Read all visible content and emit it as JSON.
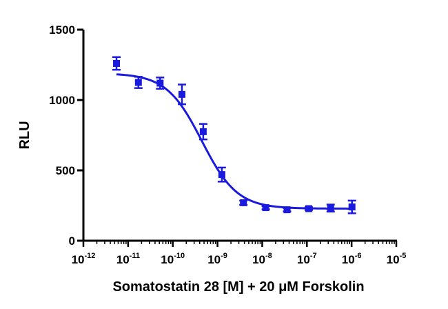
{
  "chart_data": {
    "type": "scatter",
    "title": "",
    "xlabel": "Somatostatin 28 [M] + 20 μM Forskolin",
    "ylabel": "RLU",
    "x_scale": "log",
    "xlim": [
      1e-12,
      1e-05
    ],
    "ylim": [
      0,
      1500
    ],
    "x_ticks": [
      {
        "base": "10",
        "exp": "-12"
      },
      {
        "base": "10",
        "exp": "-11"
      },
      {
        "base": "10",
        "exp": "-10"
      },
      {
        "base": "10",
        "exp": "-9"
      },
      {
        "base": "10",
        "exp": "-8"
      },
      {
        "base": "10",
        "exp": "-7"
      },
      {
        "base": "10",
        "exp": "-6"
      },
      {
        "base": "10",
        "exp": "-5"
      }
    ],
    "y_ticks": [
      "0",
      "500",
      "1000",
      "1500"
    ],
    "y_tick_values": [
      0,
      500,
      1000,
      1500
    ],
    "grid": false,
    "legend": "none",
    "color": "#1a1adf",
    "series": [
      {
        "points": [
          {
            "x": 5.5e-12,
            "y": 1260,
            "err": 45
          },
          {
            "x": 1.7e-11,
            "y": 1125,
            "err": 40
          },
          {
            "x": 5.2e-11,
            "y": 1120,
            "err": 40
          },
          {
            "x": 1.6e-10,
            "y": 1040,
            "err": 70
          },
          {
            "x": 4.8e-10,
            "y": 775,
            "err": 55
          },
          {
            "x": 1.25e-09,
            "y": 470,
            "err": 50
          },
          {
            "x": 3.8e-09,
            "y": 270,
            "err": 15
          },
          {
            "x": 1.2e-08,
            "y": 235,
            "err": 12
          },
          {
            "x": 3.6e-08,
            "y": 220,
            "err": 12
          },
          {
            "x": 1.1e-07,
            "y": 228,
            "err": 10
          },
          {
            "x": 3.4e-07,
            "y": 232,
            "err": 25
          },
          {
            "x": 1.02e-06,
            "y": 240,
            "err": 45
          }
        ],
        "fit": {
          "model": "four-parameter logistic",
          "top": 1190,
          "bottom": 228,
          "log_ec50": -9.35,
          "hill_slope": -1.1,
          "x_range": [
            5.5e-12,
            1.02e-06
          ]
        }
      }
    ]
  }
}
